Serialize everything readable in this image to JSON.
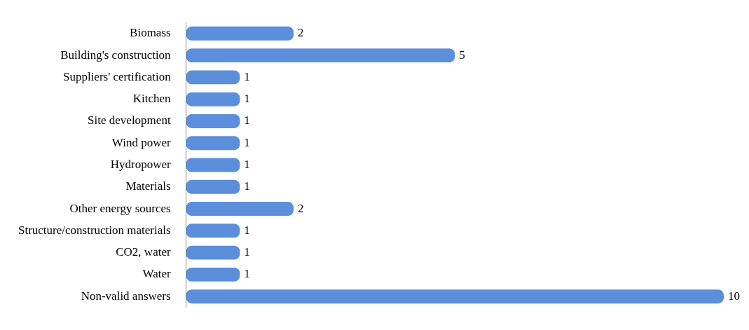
{
  "chart_data": {
    "type": "bar",
    "orientation": "horizontal",
    "data_labels": true,
    "legend": false,
    "color": "#5b8fdc",
    "categories": [
      "Biomass",
      "Building's construction",
      "Suppliers' certification",
      "Kitchen",
      "Site development",
      "Wind power",
      "Hydropower",
      "Materials",
      "Other energy sources",
      "Structure/construction materials",
      "CO2, water",
      "Water",
      "Non-valid answers"
    ],
    "values": [
      2,
      5,
      1,
      1,
      1,
      1,
      1,
      1,
      2,
      1,
      1,
      1,
      10
    ]
  }
}
